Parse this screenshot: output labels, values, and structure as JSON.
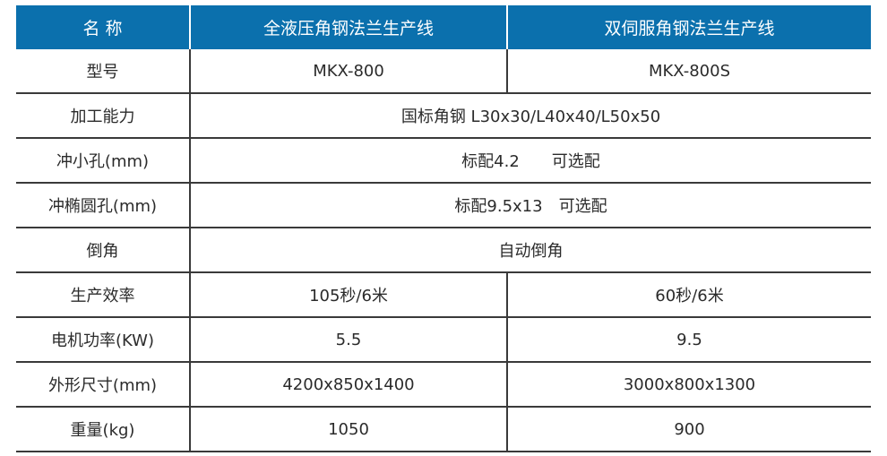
{
  "header": [
    "名 称",
    "全液压角钢法兰生产线",
    "双伺服角钢法兰生产线"
  ],
  "rows": [
    {
      "label": "型号",
      "a": "MKX-800",
      "b": "MKX-800S"
    },
    {
      "label": "加工能力",
      "span": "国标角钢 L30x30/L40x40/L50x50"
    },
    {
      "label": "冲小孔(mm)",
      "span": "标配4.2　　可选配"
    },
    {
      "label": "冲椭圆孔(mm)",
      "span": "标配9.5x13　可选配"
    },
    {
      "label": "倒角",
      "span": "自动倒角"
    },
    {
      "label": "生产效率",
      "a": "105秒/6米",
      "b": "60秒/6米"
    },
    {
      "label": "电机功率(KW)",
      "a": "5.5",
      "b": "9.5"
    },
    {
      "label": "外形尺寸(mm)",
      "a": "4200x850x1400",
      "b": "3000x800x1300"
    },
    {
      "label": "重量(kg)",
      "a": "1050",
      "b": "900"
    }
  ],
  "colors": {
    "header_bg": "#0b70ad",
    "grid": "#3a3a3a"
  }
}
